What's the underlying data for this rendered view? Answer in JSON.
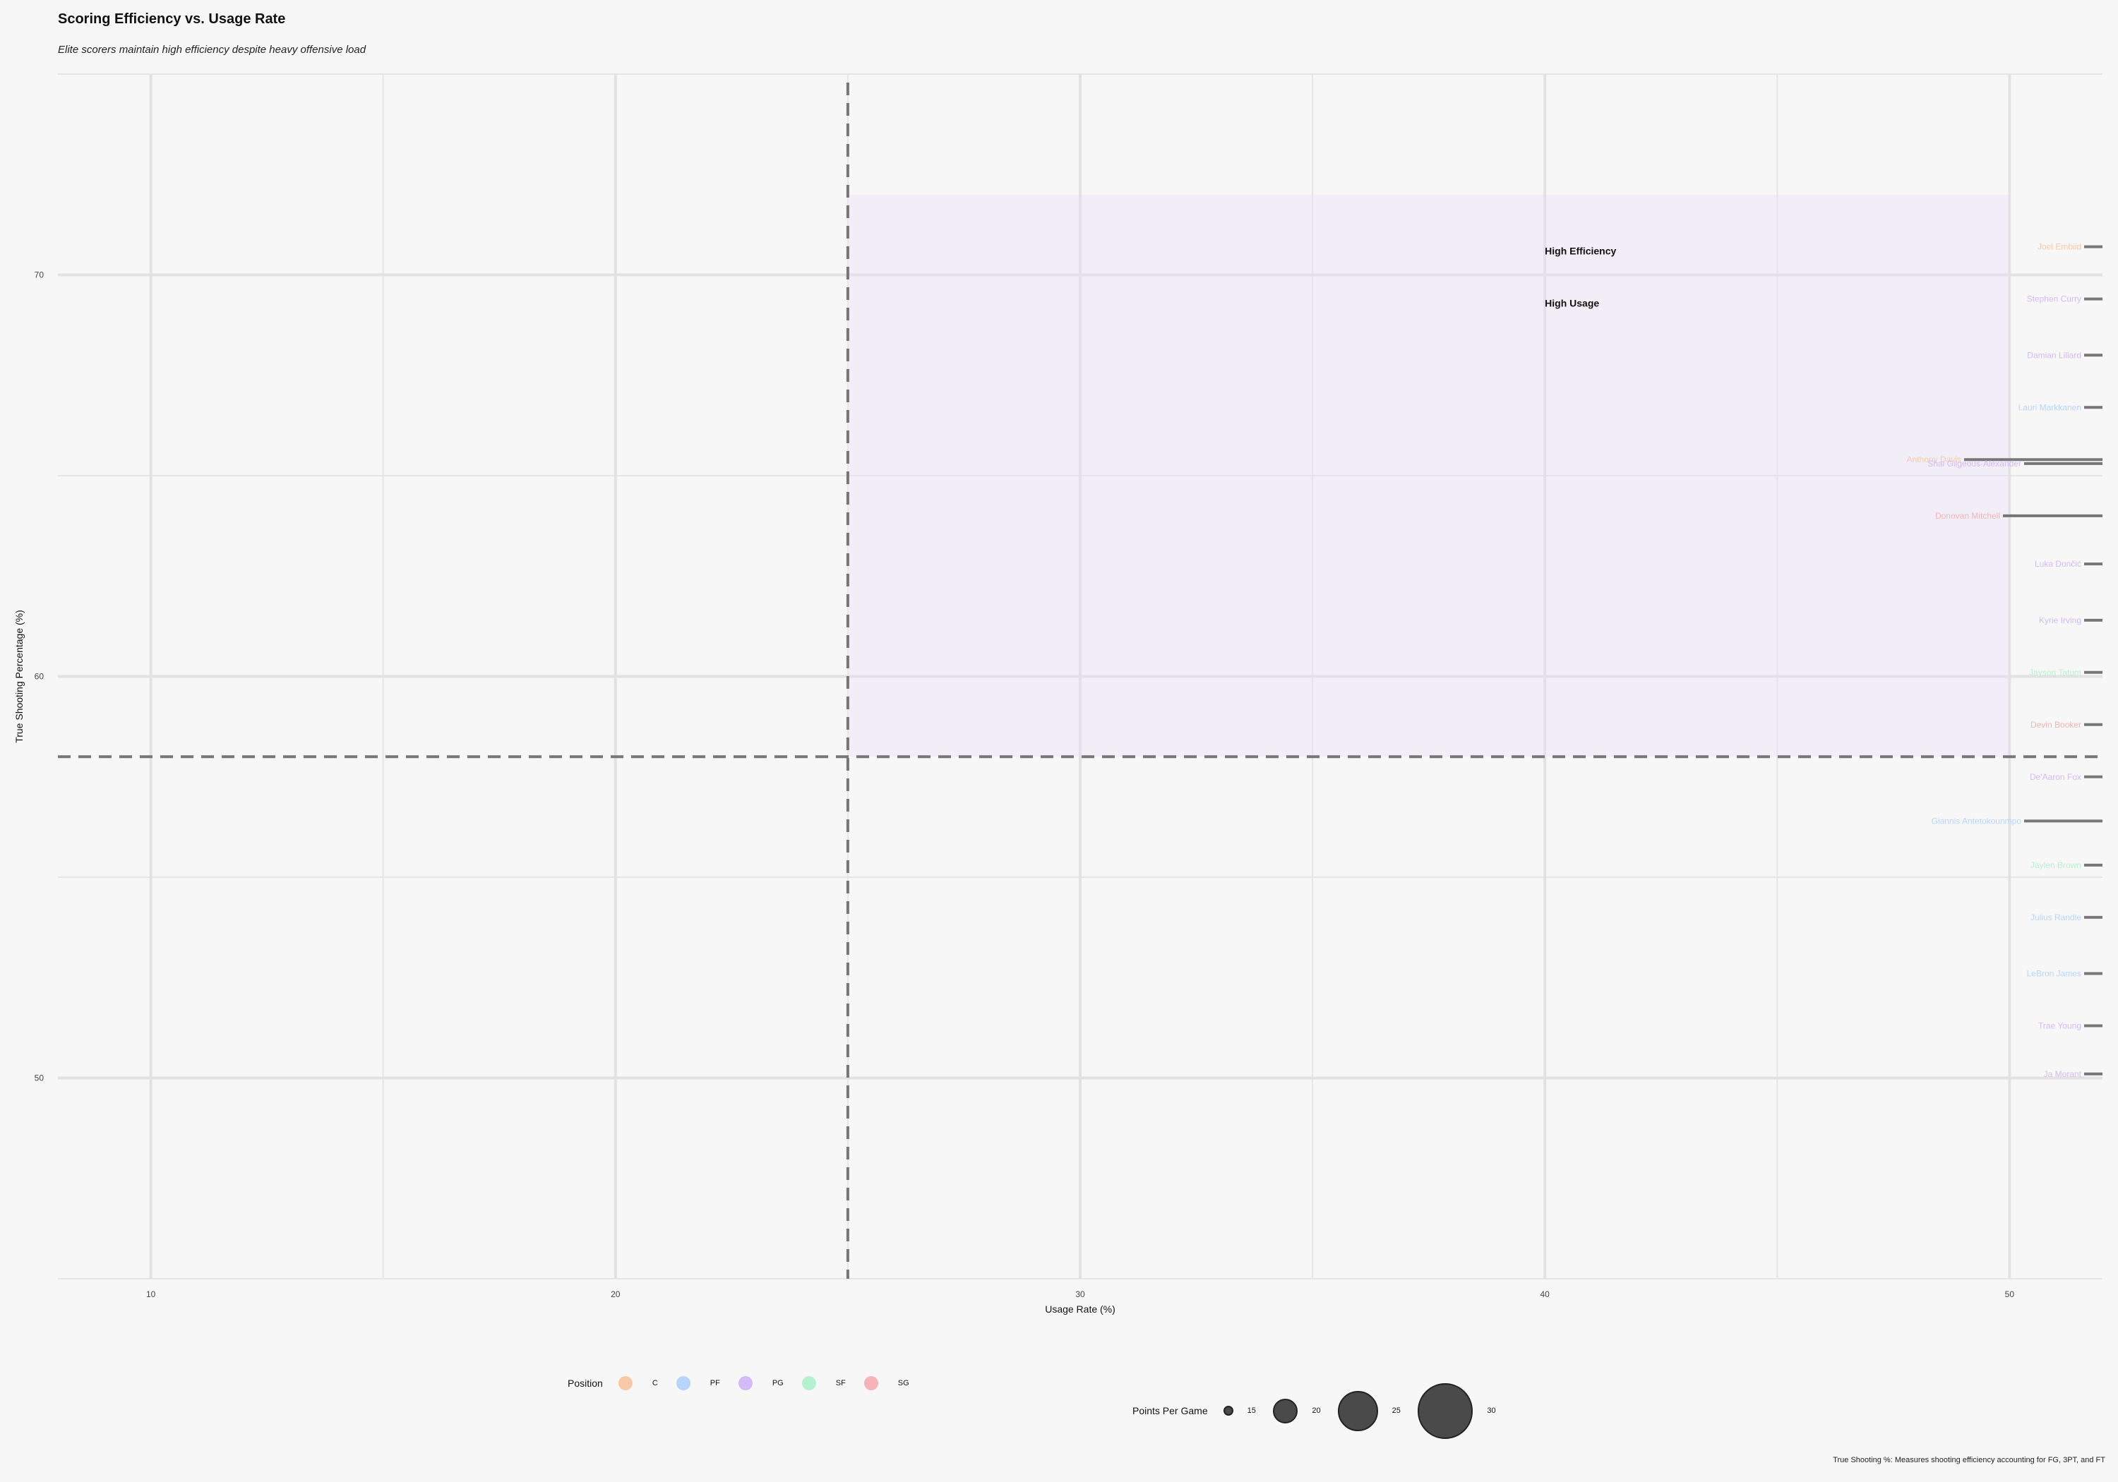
{
  "chart_data": {
    "type": "scatter",
    "title": "Scoring Efficiency vs. Usage Rate",
    "subtitle": "Elite scorers maintain high efficiency despite heavy offensive load",
    "xlabel": "Usage Rate (%)",
    "ylabel": "True Shooting Percentage (%)",
    "caption": "True Shooting %: Measures shooting efficiency accounting for FG, 3PT, and FT",
    "xlim": [
      8,
      52
    ],
    "ylim": [
      45,
      75
    ],
    "x_ticks": [
      10,
      20,
      30,
      40,
      50
    ],
    "y_ticks": [
      50,
      60,
      70
    ],
    "grid": true,
    "reference_lines": {
      "x": 25,
      "y": 58
    },
    "highlight_region": {
      "x": [
        25,
        50
      ],
      "y": [
        58,
        72
      ]
    },
    "annotations": [
      "High Efficiency",
      "High Usage"
    ],
    "position_colors": {
      "C": "#f9c9a7",
      "PF": "#b7d5fb",
      "PG": "#d4baf6",
      "SF": "#b6f1cd",
      "SG": "#f6b3b8"
    },
    "points": [
      {
        "name": "Joel Embiid",
        "position": "C",
        "ts": 70.7
      },
      {
        "name": "Stephen Curry",
        "position": "PG",
        "ts": 69.4
      },
      {
        "name": "Damian Lillard",
        "position": "PG",
        "ts": 68.0
      },
      {
        "name": "Lauri Markkanen",
        "position": "PF",
        "ts": 66.7
      },
      {
        "name": "Anthony Davis",
        "position": "C",
        "ts": 65.4
      },
      {
        "name": "Shai Gilgeous-Alexander",
        "position": "PG",
        "ts": 65.3
      },
      {
        "name": "Donovan Mitchell",
        "position": "SG",
        "ts": 64.0
      },
      {
        "name": "Luka Dončić",
        "position": "PG",
        "ts": 62.8
      },
      {
        "name": "Kyrie Irving",
        "position": "PG",
        "ts": 61.4
      },
      {
        "name": "Jayson Tatum",
        "position": "SF",
        "ts": 60.1
      },
      {
        "name": "Devin Booker",
        "position": "SG",
        "ts": 58.8
      },
      {
        "name": "De'Aaron Fox",
        "position": "PG",
        "ts": 57.5
      },
      {
        "name": "Giannis Antetokounmpo",
        "position": "PF",
        "ts": 56.4
      },
      {
        "name": "Jaylen Brown",
        "position": "SF",
        "ts": 55.3
      },
      {
        "name": "Julius Randle",
        "position": "PF",
        "ts": 54.0
      },
      {
        "name": "LeBron James",
        "position": "PF",
        "ts": 52.6
      },
      {
        "name": "Trae Young",
        "position": "PG",
        "ts": 51.3
      },
      {
        "name": "Ja Morant",
        "position": "PG",
        "ts": 50.1
      }
    ],
    "legend": {
      "position_title": "Position",
      "positions": [
        "C",
        "PF",
        "PG",
        "SF",
        "SG"
      ],
      "size_title": "Points Per Game",
      "sizes": [
        15,
        20,
        25,
        30
      ]
    }
  }
}
